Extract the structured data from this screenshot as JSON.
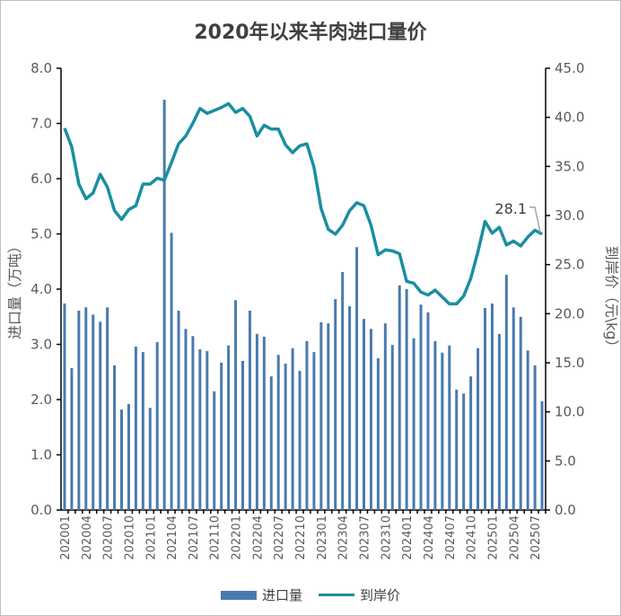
{
  "chart_data": {
    "type": "bar+line",
    "title": "2020年以来羊肉进口量价",
    "ylabel_left": "进口量（万吨）",
    "ylabel_right": "到岸价（元\\kg）",
    "ylim_left": [
      0,
      8
    ],
    "ylim_right": [
      0,
      45
    ],
    "yticks_left": [
      "0.0",
      "1.0",
      "2.0",
      "3.0",
      "4.0",
      "5.0",
      "6.0",
      "7.0",
      "8.0"
    ],
    "yticks_right": [
      "0.0",
      "5.0",
      "10.0",
      "15.0",
      "20.0",
      "25.0",
      "30.0",
      "35.0",
      "40.0",
      "45.0"
    ],
    "grid": false,
    "legend_position": "bottom",
    "categories": [
      "202001",
      "202002",
      "202003",
      "202004",
      "202005",
      "202006",
      "202007",
      "202008",
      "202009",
      "202010",
      "202011",
      "202012",
      "202101",
      "202102",
      "202103",
      "202104",
      "202105",
      "202106",
      "202107",
      "202108",
      "202109",
      "202110",
      "202111",
      "202112",
      "202201",
      "202202",
      "202203",
      "202204",
      "202205",
      "202206",
      "202207",
      "202208",
      "202209",
      "202210",
      "202211",
      "202212",
      "202301",
      "202302",
      "202303",
      "202304",
      "202305",
      "202306",
      "202307",
      "202308",
      "202309",
      "202310",
      "202311",
      "202312",
      "202401",
      "202402",
      "202403",
      "202404",
      "202405",
      "202406",
      "202407",
      "202408",
      "202409",
      "202410",
      "202411",
      "202412",
      "202501",
      "202502",
      "202503",
      "202504",
      "202505",
      "202506",
      "202507",
      "202508"
    ],
    "series": [
      {
        "name": "进口量",
        "type": "bar",
        "axis": "left",
        "color": "#4a7aad",
        "values": [
          3.74,
          2.57,
          3.61,
          3.67,
          3.54,
          3.41,
          3.67,
          2.62,
          1.82,
          1.92,
          2.96,
          2.86,
          1.85,
          3.04,
          7.43,
          5.02,
          3.61,
          3.28,
          3.15,
          2.91,
          2.88,
          2.15,
          2.67,
          2.98,
          3.8,
          2.7,
          3.61,
          3.19,
          3.14,
          2.42,
          2.81,
          2.65,
          2.93,
          2.52,
          3.06,
          2.86,
          3.4,
          3.38,
          3.82,
          4.31,
          3.69,
          4.76,
          3.46,
          3.28,
          2.75,
          3.38,
          2.99,
          4.07,
          4.0,
          3.11,
          3.72,
          3.58,
          3.06,
          2.85,
          2.98,
          2.18,
          2.11,
          2.42,
          2.93,
          3.66,
          3.74,
          3.19,
          4.26,
          3.67,
          3.5,
          2.89,
          2.62,
          1.97
        ]
      },
      {
        "name": "到岸价",
        "type": "line",
        "axis": "right",
        "color": "#1b8ea1",
        "values": [
          38.9,
          37.0,
          33.2,
          31.7,
          32.3,
          34.2,
          32.9,
          30.5,
          29.6,
          30.6,
          31.0,
          33.2,
          33.2,
          33.8,
          33.6,
          35.4,
          37.3,
          38.1,
          39.4,
          40.9,
          40.4,
          40.7,
          41.0,
          41.4,
          40.5,
          40.9,
          40.1,
          38.1,
          39.2,
          38.8,
          38.8,
          37.2,
          36.4,
          37.1,
          37.3,
          34.9,
          30.7,
          28.6,
          28.1,
          29.0,
          30.5,
          31.3,
          31.0,
          29.0,
          26.0,
          26.5,
          26.4,
          26.1,
          23.3,
          23.1,
          22.2,
          21.9,
          22.4,
          21.7,
          21.0,
          21.0,
          21.8,
          23.6,
          26.3,
          29.4,
          28.2,
          28.8,
          27.0,
          27.4,
          26.9,
          27.8,
          28.5,
          28.1
        ]
      }
    ],
    "annotation": {
      "text": "28.1",
      "category": "202508"
    }
  }
}
